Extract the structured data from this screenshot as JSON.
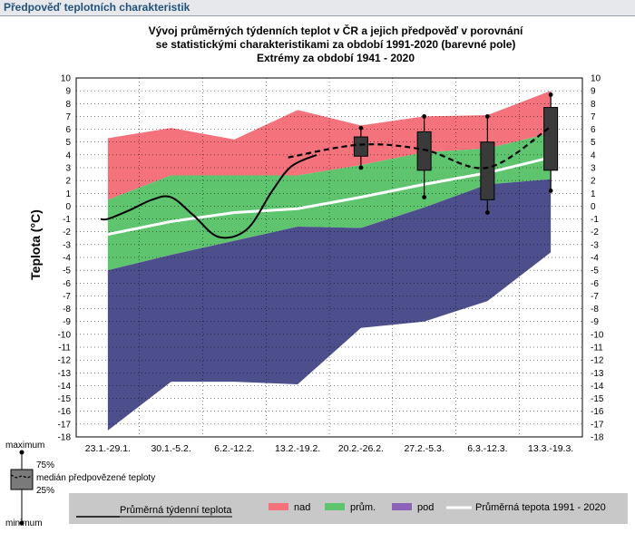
{
  "header": {
    "title": "Předpověď teplotních charakteristik"
  },
  "colors": {
    "nad": "#f4727c",
    "prum": "#5fc46e",
    "pod": "#4d4f8c",
    "header_bg": "#e6e8ec",
    "header_text": "#24527a",
    "legend_bar": "#c8c8c8"
  },
  "chart_data": {
    "type": "area",
    "title": [
      "Vývoj průměrných týdenních teplot v ČR a jejich předpověď v porovnání",
      "se statistickými charakteristikami za období 1991-2020 (barevné pole)",
      "Extrémy za období 1941 - 2020"
    ],
    "ylabel": "Teplota (°C)",
    "ylim": [
      -18,
      10
    ],
    "yticks": [
      10,
      9,
      8,
      7,
      6,
      5,
      4,
      3,
      2,
      1,
      0,
      -1,
      -2,
      -3,
      -4,
      -5,
      -6,
      -7,
      -8,
      -9,
      -10,
      -11,
      -12,
      -13,
      -14,
      -15,
      -16,
      -17,
      -18
    ],
    "grid": true,
    "categories": [
      "23.1.-29.1.",
      "30.1.-5.2.",
      "6.2.-12.2.",
      "13.2.-19.2.",
      "20.2.-26.2.",
      "27.2.-5.3.",
      "6.3.-12.3.",
      "13.3.-19.3."
    ],
    "bands": {
      "max": [
        5.3,
        6.1,
        5.2,
        7.5,
        6.3,
        7.0,
        7.1,
        9.0
      ],
      "upper": [
        0.5,
        2.4,
        2.4,
        2.4,
        3.2,
        4.2,
        4.5,
        5.7
      ],
      "lower": [
        -5.0,
        -3.8,
        -2.7,
        -1.6,
        -1.7,
        -0.1,
        1.7,
        2.1
      ],
      "min": [
        -17.5,
        -13.7,
        -13.7,
        -13.9,
        -9.5,
        -9.0,
        -7.4,
        -3.6
      ]
    },
    "normal_1991_2020": [
      -2.2,
      -1.2,
      -0.5,
      -0.2,
      0.7,
      1.7,
      2.6,
      3.8
    ],
    "observed_line": [
      {
        "x": 0.0,
        "y": -1.0
      },
      {
        "x": 0.35,
        "y": -0.3
      },
      {
        "x": 0.7,
        "y": 0.5
      },
      {
        "x": 1.0,
        "y": 0.7
      },
      {
        "x": 1.35,
        "y": -0.7
      },
      {
        "x": 1.75,
        "y": -2.4
      },
      {
        "x": 2.2,
        "y": -1.8
      },
      {
        "x": 2.6,
        "y": 1.2
      },
      {
        "x": 2.9,
        "y": 3.1
      },
      {
        "x": 3.3,
        "y": 4.0
      }
    ],
    "forecast_median_line": [
      3.8,
      4.8,
      4.4,
      3.0,
      6.2
    ],
    "forecast_boxes": [
      {
        "category": "20.2.-26.2.",
        "min": 3.0,
        "q25": 3.9,
        "q75": 5.4,
        "max": 6.1
      },
      {
        "category": "27.2.-5.3.",
        "min": 0.7,
        "q25": 2.8,
        "q75": 5.8,
        "max": 7.0
      },
      {
        "category": "6.3.-12.3.",
        "min": -0.5,
        "q25": 0.5,
        "q75": 5.0,
        "max": 7.0
      },
      {
        "category": "13.3.-19.3.",
        "min": 1.2,
        "q25": 2.8,
        "q75": 7.7,
        "max": 8.7
      }
    ]
  },
  "box_legend": {
    "maximum": "maximum",
    "p75": "75%",
    "median": "medián předpovězené teploty",
    "p25": "25%",
    "minimum": "minimum"
  },
  "legend": {
    "weekly_avg": "Průměrná týdenní teplota",
    "nad": "nad",
    "prum": "prům.",
    "pod": "pod",
    "normal": "Průměrná tepota 1991 - 2020"
  }
}
